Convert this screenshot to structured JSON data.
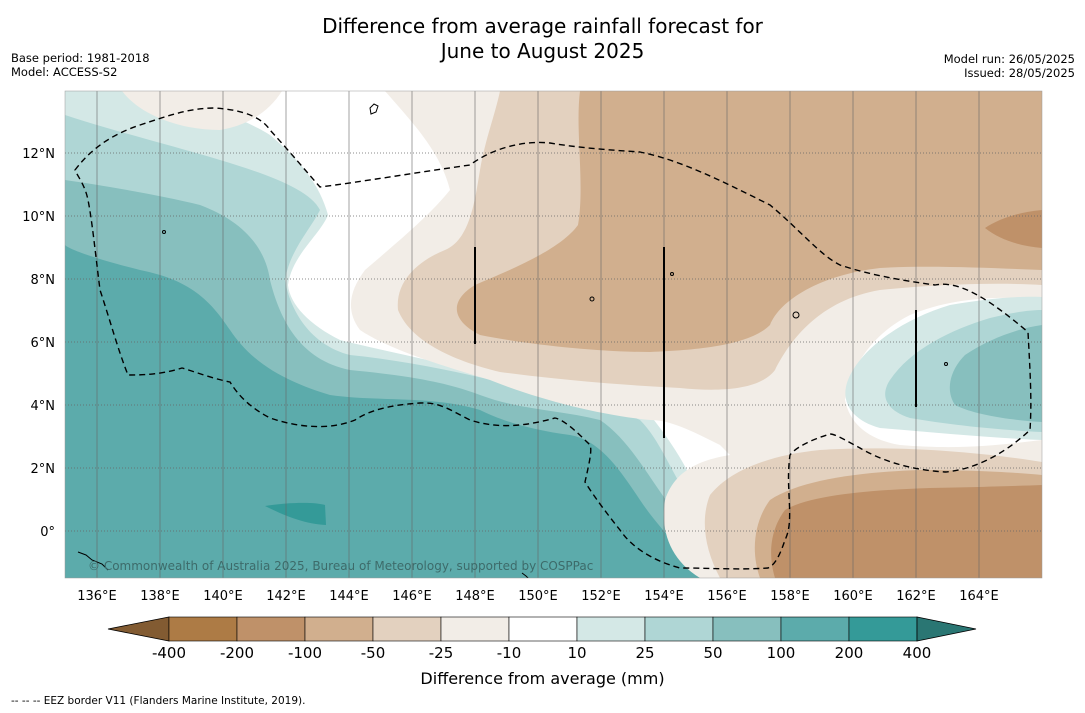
{
  "title_line1": "Difference from average rainfall forecast for",
  "title_line2": "June to August 2025",
  "meta_left": {
    "line1": "Base period: 1981-2018",
    "line2": "Model: ACCESS-S2"
  },
  "meta_right": {
    "line1": "Model run: 26/05/2025",
    "line2": "Issued: 28/05/2025"
  },
  "copyright": "© Commonwealth of Australia 2025, Bureau of Meteorology, supported by COSPPac",
  "footnote": "--  --  -- EEZ border V11 (Flanders Marine Institute, 2019).",
  "longitude_labels": [
    "136°E",
    "138°E",
    "140°E",
    "142°E",
    "144°E",
    "146°E",
    "148°E",
    "150°E",
    "152°E",
    "154°E",
    "156°E",
    "158°E",
    "160°E",
    "162°E",
    "164°E"
  ],
  "latitude_labels": [
    "12°N",
    "10°N",
    "8°N",
    "6°N",
    "4°N",
    "2°N",
    "0°"
  ],
  "colorbar": {
    "label": "Difference from average (mm)",
    "ticks": [
      "-400",
      "-200",
      "-100",
      "-50",
      "-25",
      "-10",
      "10",
      "25",
      "50",
      "100",
      "200",
      "400"
    ],
    "colors": [
      "#ad7b45",
      "#bf9169",
      "#d1af8e",
      "#e3d1bf",
      "#f2ede7",
      "#ffffff",
      "#d4e8e6",
      "#afd6d5",
      "#87bfbe",
      "#5cabab",
      "#349a98"
    ],
    "extend_low_color": "#825b32",
    "extend_high_color": "#2a7673"
  },
  "colors": {
    "border": "#000000",
    "grid": "#666666"
  }
}
